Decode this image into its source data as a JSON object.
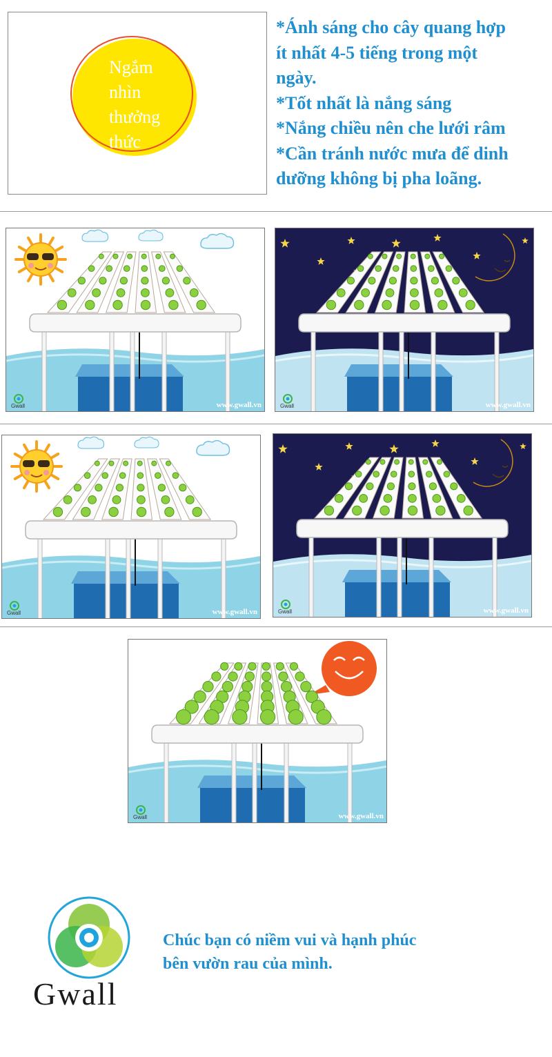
{
  "intro": {
    "badge_lines": [
      "Ngắm",
      "nhìn",
      "thưởng",
      "thức"
    ],
    "tips": [
      "*Ánh sáng cho cây quang hợp",
      "ít nhất 4-5 tiếng trong một",
      "ngày.",
      "*Tốt nhất là nắng sáng",
      "*Nắng chiều nên che lưới râm",
      "*Cần tránh nước mưa để dinh",
      "dưỡng không bị pha loãng."
    ]
  },
  "panels": [
    {
      "id": "day-1",
      "scene": "day",
      "watermark": "www.gwall.vn",
      "logo_text": "Gwall"
    },
    {
      "id": "night-1",
      "scene": "night",
      "watermark": "www.gwall.vn",
      "logo_text": "Gwall"
    },
    {
      "id": "day-2",
      "scene": "day",
      "watermark": "www.gwall.vn",
      "logo_text": "Gwall"
    },
    {
      "id": "night-2",
      "scene": "night",
      "watermark": "www.gwall.vn",
      "logo_text": "Gwall"
    },
    {
      "id": "happy",
      "scene": "happy",
      "watermark": "www.gwall.vn",
      "logo_text": "Gwall"
    }
  ],
  "footer": {
    "brand": "Gwall",
    "greeting_lines": [
      "Chúc bạn có niềm vui và hạnh phúc",
      "bên vườn rau của mình."
    ]
  },
  "colors": {
    "text_blue": "#1f8fd0",
    "sun_yellow": "#ffe600",
    "sky_day": "#ffffff",
    "sky_night": "#1b1b4f",
    "water": "#8fd3e6",
    "tank": "#1f6cb0"
  },
  "icons": [
    "sun-sunglasses-icon",
    "cloud-icon",
    "moon-icon",
    "star-icon",
    "smiley-bubble-icon",
    "gwall-logo-icon"
  ]
}
